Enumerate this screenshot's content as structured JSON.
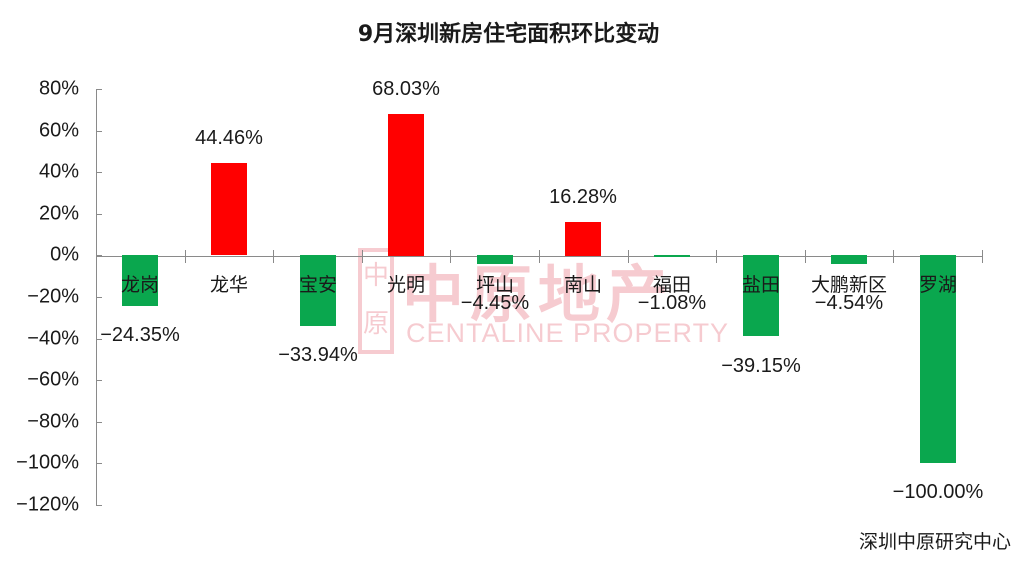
{
  "chart": {
    "title": "9月深圳新房住宅面积环比变动",
    "source": "深圳中原研究中心",
    "watermark": {
      "seal_text": "中原",
      "cn_text": "中原地产",
      "en_text": "CENTALINE PROPERTY"
    },
    "colors": {
      "positive": "#ff0000",
      "negative": "#0aa74e",
      "axis": "#8a8a8a"
    },
    "y_ticks": [
      "80%",
      "60%",
      "40%",
      "20%",
      "0%",
      "-20%",
      "-40%",
      "-60%",
      "-80%",
      "-100%",
      "-120%"
    ],
    "bars": [
      {
        "category": "龙岗",
        "value_label": "-24.35%"
      },
      {
        "category": "龙华",
        "value_label": "44.46%"
      },
      {
        "category": "宝安",
        "value_label": "-33.94%"
      },
      {
        "category": "光明",
        "value_label": "68.03%"
      },
      {
        "category": "坪山",
        "value_label": "-4.45%"
      },
      {
        "category": "南山",
        "value_label": "16.28%"
      },
      {
        "category": "福田",
        "value_label": "-1.08%"
      },
      {
        "category": "盐田",
        "value_label": "-39.15%"
      },
      {
        "category": "大鹏新区",
        "value_label": "-4.54%"
      },
      {
        "category": "罗湖",
        "value_label": "-100.00%"
      }
    ]
  },
  "chart_data": {
    "type": "bar",
    "title": "9月深圳新房住宅面积环比变动",
    "categories": [
      "龙岗",
      "龙华",
      "宝安",
      "光明",
      "坪山",
      "南山",
      "福田",
      "盐田",
      "大鹏新区",
      "罗湖"
    ],
    "values": [
      -24.35,
      44.46,
      -33.94,
      68.03,
      -4.45,
      16.28,
      -1.08,
      -39.15,
      -4.54,
      -100.0
    ],
    "unit": "%",
    "xlabel": "",
    "ylabel": "",
    "ylim": [
      -120,
      80
    ],
    "y_tick_step": 20,
    "grid": false,
    "legend": null,
    "colors": {
      "positive": "#ff0000",
      "negative": "#0aa74e"
    },
    "annotations": [
      "深圳中原研究中心"
    ]
  }
}
